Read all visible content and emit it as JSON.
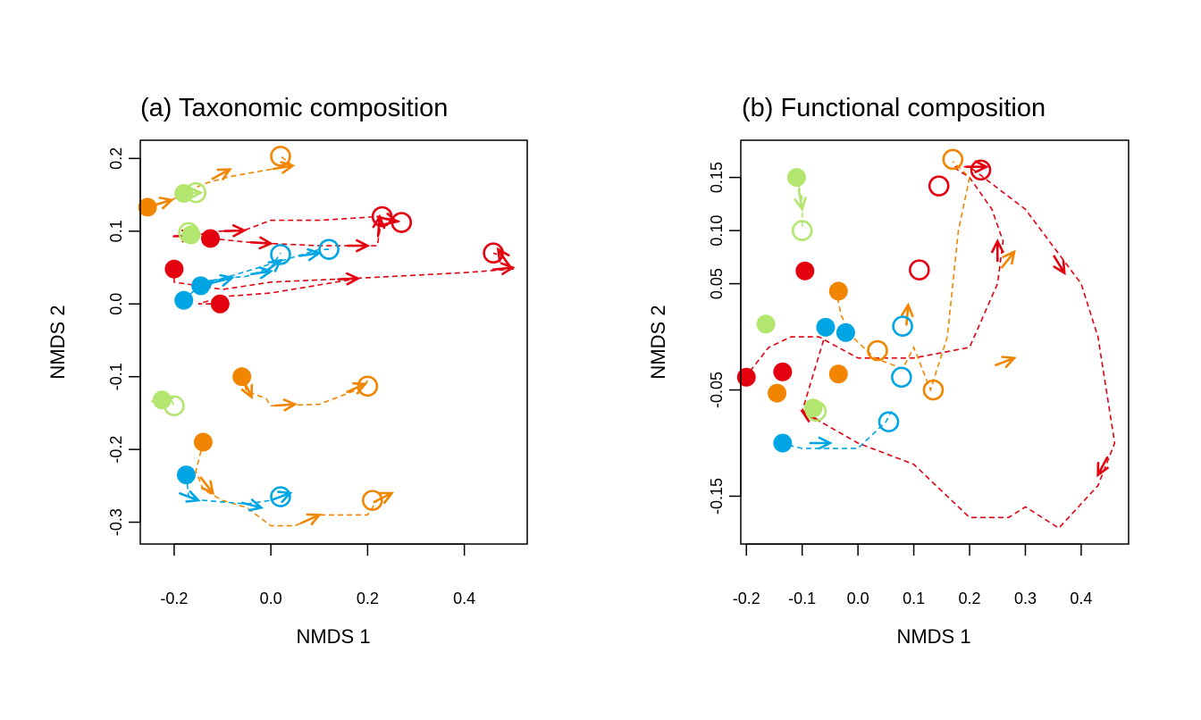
{
  "colors": {
    "red": "#e3000f",
    "orange": "#f28500",
    "blue": "#00a5e3",
    "green": "#b3e66f",
    "axis": "#000000"
  },
  "chart_data": [
    {
      "type": "scatter",
      "title": "(a) Taxonomic composition",
      "xlabel": "NMDS 1",
      "ylabel": "NMDS 2",
      "xlim": [
        -0.27,
        0.53
      ],
      "ylim": [
        -0.33,
        0.225
      ],
      "xticks": [
        -0.2,
        0.0,
        0.2,
        0.4
      ],
      "xtick_labels": [
        "-0.2",
        "0.0",
        "0.2",
        "0.4"
      ],
      "yticks": [
        -0.3,
        -0.2,
        -0.1,
        0.0,
        0.1,
        0.2
      ],
      "ytick_labels": [
        "-0.3",
        "-0.2",
        "-0.1",
        "0.0",
        "0.1",
        "0.2"
      ],
      "grid": false,
      "marker_legend": "filled circle = start, open circle = end, arrows = intermediate steps",
      "trajectories": [
        {
          "color": "orange",
          "points": [
            [
              -0.255,
              0.133
            ],
            [
              -0.205,
              0.143
            ],
            [
              -0.14,
              0.165
            ],
            [
              -0.085,
              0.175
            ],
            [
              0.0,
              0.185
            ],
            [
              0.045,
              0.19
            ],
            [
              0.02,
              0.203
            ]
          ],
          "arrows": [
            [
              -0.205,
              0.143
            ],
            [
              -0.085,
              0.185
            ],
            [
              0.045,
              0.19
            ]
          ],
          "dashed": true
        },
        {
          "color": "green",
          "points": [
            [
              -0.18,
              0.152
            ],
            [
              -0.145,
              0.153
            ],
            [
              -0.17,
              0.155
            ]
          ],
          "arrows": [
            [
              -0.145,
              0.153
            ]
          ],
          "dashed": true
        },
        {
          "color": "green",
          "points": [
            [
              -0.165,
              0.095
            ],
            [
              -0.185,
              0.092
            ],
            [
              -0.18,
              0.098
            ]
          ],
          "arrows": [],
          "dashed": true
        },
        {
          "color": "red",
          "points": [
            [
              -0.2,
              0.093
            ],
            [
              -0.16,
              0.094
            ],
            [
              -0.11,
              0.1
            ],
            [
              -0.06,
              0.1
            ],
            [
              0.0,
              0.115
            ],
            [
              0.1,
              0.115
            ],
            [
              0.22,
              0.12
            ],
            [
              0.26,
              0.115
            ],
            [
              0.27,
              0.112
            ]
          ],
          "arrows": [
            [
              -0.16,
              0.094
            ],
            [
              -0.055,
              0.101
            ],
            [
              0.26,
              0.113
            ]
          ],
          "dashed": true
        },
        {
          "color": "red",
          "points": [
            [
              -0.125,
              0.09
            ],
            [
              -0.05,
              0.085
            ],
            [
              0.0,
              0.083
            ],
            [
              0.1,
              0.08
            ],
            [
              0.22,
              0.08
            ],
            [
              0.23,
              0.12
            ]
          ],
          "arrows": [
            [
              0.0,
              0.083
            ],
            [
              0.2,
              0.08
            ],
            [
              0.225,
              0.12
            ]
          ],
          "dashed": true
        },
        {
          "color": "red",
          "points": [
            [
              -0.2,
              0.048
            ],
            [
              -0.2,
              0.03
            ],
            [
              -0.1,
              0.02
            ],
            [
              0.0,
              0.03
            ],
            [
              0.2,
              0.036
            ],
            [
              0.4,
              0.043
            ],
            [
              0.5,
              0.048
            ],
            [
              0.48,
              0.065
            ],
            [
              0.46,
              0.07
            ]
          ],
          "arrows": [
            [
              0.18,
              0.035
            ],
            [
              0.5,
              0.05
            ],
            [
              0.47,
              0.075
            ]
          ],
          "dashed": true
        },
        {
          "color": "red",
          "points": [
            [
              -0.105,
              0.0
            ],
            [
              -0.15,
              0.0
            ],
            [
              -0.1,
              0.01
            ],
            [
              0.0,
              0.015
            ],
            [
              0.18,
              0.035
            ]
          ],
          "arrows": [],
          "dashed": true
        },
        {
          "color": "blue",
          "points": [
            [
              -0.18,
              0.005
            ],
            [
              -0.14,
              0.03
            ],
            [
              -0.1,
              0.035
            ],
            [
              0.0,
              0.055
            ],
            [
              0.05,
              0.065
            ],
            [
              0.1,
              0.075
            ],
            [
              0.12,
              0.075
            ]
          ],
          "arrows": [
            [
              -0.12,
              0.032
            ],
            [
              0.0,
              0.045
            ],
            [
              0.1,
              0.07
            ]
          ],
          "dashed": true
        },
        {
          "color": "blue",
          "points": [
            [
              -0.145,
              0.025
            ],
            [
              -0.1,
              0.035
            ],
            [
              -0.05,
              0.038
            ],
            [
              0.0,
              0.05
            ],
            [
              0.02,
              0.07
            ]
          ],
          "arrows": [
            [
              -0.08,
              0.036
            ],
            [
              0.02,
              0.06
            ]
          ],
          "dashed": true
        },
        {
          "color": "green",
          "points": [
            [
              -0.225,
              -0.132
            ],
            [
              -0.205,
              -0.133
            ],
            [
              -0.2,
              -0.14
            ]
          ],
          "arrows": [
            [
              -0.205,
              -0.13
            ]
          ],
          "dashed": true
        },
        {
          "color": "orange",
          "points": [
            [
              -0.06,
              -0.1
            ],
            [
              -0.05,
              -0.12
            ],
            [
              -0.01,
              -0.13
            ],
            [
              0.0,
              -0.14
            ],
            [
              0.1,
              -0.138
            ],
            [
              0.19,
              -0.115
            ],
            [
              0.2,
              -0.105
            ]
          ],
          "arrows": [
            [
              -0.04,
              -0.128
            ],
            [
              0.05,
              -0.138
            ],
            [
              0.195,
              -0.11
            ]
          ],
          "dashed": true
        },
        {
          "color": "orange",
          "points": [
            [
              -0.14,
              -0.19
            ],
            [
              -0.155,
              -0.23
            ],
            [
              -0.14,
              -0.255
            ],
            [
              -0.1,
              -0.27
            ],
            [
              -0.05,
              -0.28
            ],
            [
              0.0,
              -0.305
            ],
            [
              0.05,
              -0.305
            ],
            [
              0.1,
              -0.29
            ],
            [
              0.2,
              -0.29
            ],
            [
              0.22,
              -0.27
            ],
            [
              0.25,
              -0.26
            ]
          ],
          "arrows": [
            [
              -0.12,
              -0.26
            ],
            [
              0.1,
              -0.29
            ],
            [
              0.25,
              -0.26
            ]
          ],
          "dashed": true
        },
        {
          "color": "blue",
          "points": [
            [
              -0.175,
              -0.235
            ],
            [
              -0.17,
              -0.265
            ],
            [
              -0.14,
              -0.27
            ],
            [
              -0.05,
              -0.275
            ],
            [
              0.0,
              -0.27
            ],
            [
              0.02,
              -0.265
            ]
          ],
          "arrows": [
            [
              -0.15,
              -0.27
            ],
            [
              -0.02,
              -0.28
            ],
            [
              0.04,
              -0.26
            ]
          ],
          "dashed": true
        }
      ],
      "start_points": [
        {
          "color": "orange",
          "x": -0.255,
          "y": 0.133
        },
        {
          "color": "green",
          "x": -0.18,
          "y": 0.152
        },
        {
          "color": "green",
          "x": -0.165,
          "y": 0.095
        },
        {
          "color": "red",
          "x": -0.125,
          "y": 0.09
        },
        {
          "color": "red",
          "x": -0.2,
          "y": 0.048
        },
        {
          "color": "blue",
          "x": -0.145,
          "y": 0.025
        },
        {
          "color": "blue",
          "x": -0.18,
          "y": 0.005
        },
        {
          "color": "red",
          "x": -0.105,
          "y": 0.0
        },
        {
          "color": "green",
          "x": -0.225,
          "y": -0.132
        },
        {
          "color": "orange",
          "x": -0.06,
          "y": -0.1
        },
        {
          "color": "orange",
          "x": -0.14,
          "y": -0.19
        },
        {
          "color": "blue",
          "x": -0.175,
          "y": -0.235
        }
      ],
      "end_points": [
        {
          "color": "orange",
          "x": 0.02,
          "y": 0.203
        },
        {
          "color": "green",
          "x": -0.155,
          "y": 0.153
        },
        {
          "color": "green",
          "x": -0.17,
          "y": 0.098
        },
        {
          "color": "red",
          "x": 0.23,
          "y": 0.12
        },
        {
          "color": "red",
          "x": 0.27,
          "y": 0.112
        },
        {
          "color": "red",
          "x": 0.46,
          "y": 0.07
        },
        {
          "color": "blue",
          "x": 0.12,
          "y": 0.075
        },
        {
          "color": "blue",
          "x": 0.02,
          "y": 0.068
        },
        {
          "color": "green",
          "x": -0.2,
          "y": -0.14
        },
        {
          "color": "orange",
          "x": 0.2,
          "y": -0.113
        },
        {
          "color": "orange",
          "x": 0.21,
          "y": -0.27
        },
        {
          "color": "blue",
          "x": 0.02,
          "y": -0.265
        }
      ]
    },
    {
      "type": "scatter",
      "title": "(b) Functional composition",
      "xlabel": "NMDS 1",
      "ylabel": "NMDS 2",
      "xlim": [
        -0.21,
        0.485
      ],
      "ylim": [
        -0.195,
        0.185
      ],
      "xticks": [
        -0.2,
        -0.1,
        0.0,
        0.1,
        0.2,
        0.3,
        0.4
      ],
      "xtick_labels": [
        "-0.2",
        "-0.1",
        "0.0",
        "0.1",
        "0.2",
        "0.3",
        "0.4"
      ],
      "yticks": [
        -0.15,
        -0.05,
        0.05,
        0.1,
        0.15
      ],
      "ytick_labels": [
        "-0.15",
        "-0.05",
        "0.05",
        "0.10",
        "0.15"
      ],
      "grid": false,
      "trajectories": [
        {
          "color": "red",
          "points": [
            [
              -0.2,
              -0.04
            ],
            [
              -0.19,
              -0.03
            ],
            [
              -0.16,
              -0.01
            ],
            [
              -0.12,
              0.0
            ],
            [
              -0.07,
              0.0
            ],
            [
              0.0,
              -0.02
            ],
            [
              0.1,
              -0.02
            ],
            [
              0.2,
              -0.01
            ],
            [
              0.25,
              0.05
            ],
            [
              0.26,
              0.09
            ],
            [
              0.24,
              0.12
            ],
            [
              0.2,
              0.15
            ],
            [
              0.17,
              0.16
            ],
            [
              0.2,
              0.16
            ],
            [
              0.3,
              0.12
            ],
            [
              0.4,
              0.05
            ],
            [
              0.43,
              0.0
            ],
            [
              0.46,
              -0.1
            ],
            [
              0.43,
              -0.14
            ],
            [
              0.36,
              -0.18
            ],
            [
              0.33,
              -0.17
            ],
            [
              0.3,
              -0.16
            ],
            [
              0.27,
              -0.17
            ],
            [
              0.2,
              -0.17
            ],
            [
              0.1,
              -0.12
            ],
            [
              0.0,
              -0.1
            ],
            [
              -0.1,
              -0.07
            ],
            [
              -0.06,
              0.0
            ]
          ],
          "arrows": [
            [
              -0.1,
              -0.07
            ],
            [
              0.25,
              0.09
            ],
            [
              0.37,
              0.06
            ],
            [
              0.43,
              -0.13
            ],
            [
              0.23,
              0.16
            ]
          ],
          "dashed": true
        },
        {
          "color": "orange",
          "points": [
            [
              -0.04,
              0.045
            ],
            [
              -0.03,
              0.02
            ],
            [
              -0.01,
              0.0
            ],
            [
              0.03,
              -0.02
            ],
            [
              0.08,
              -0.03
            ],
            [
              0.1,
              -0.01
            ],
            [
              0.13,
              -0.05
            ],
            [
              0.16,
              0.0
            ],
            [
              0.18,
              0.1
            ],
            [
              0.2,
              0.15
            ],
            [
              0.17,
              0.165
            ]
          ],
          "arrows": [
            [
              0.09,
              0.03
            ],
            [
              0.28,
              0.08
            ],
            [
              0.28,
              -0.02
            ]
          ],
          "dashed": true
        },
        {
          "color": "blue",
          "points": [
            [
              -0.14,
              -0.1
            ],
            [
              -0.1,
              -0.105
            ],
            [
              0.0,
              -0.105
            ],
            [
              0.05,
              -0.08
            ],
            [
              0.06,
              -0.07
            ]
          ],
          "arrows": [
            [
              -0.05,
              -0.1
            ]
          ],
          "dashed": true
        },
        {
          "color": "green",
          "points": [
            [
              -0.11,
              0.15
            ],
            [
              -0.1,
              0.13
            ],
            [
              -0.1,
              0.1
            ]
          ],
          "arrows": [
            [
              -0.1,
              0.12
            ]
          ],
          "dashed": true
        }
      ],
      "start_points": [
        {
          "color": "green",
          "x": -0.11,
          "y": 0.15
        },
        {
          "color": "red",
          "x": -0.095,
          "y": 0.062
        },
        {
          "color": "orange",
          "x": -0.035,
          "y": 0.043
        },
        {
          "color": "green",
          "x": -0.165,
          "y": 0.012
        },
        {
          "color": "blue",
          "x": -0.058,
          "y": 0.009
        },
        {
          "color": "blue",
          "x": -0.022,
          "y": 0.004
        },
        {
          "color": "red",
          "x": -0.2,
          "y": -0.038
        },
        {
          "color": "red",
          "x": -0.135,
          "y": -0.033
        },
        {
          "color": "orange",
          "x": -0.145,
          "y": -0.053
        },
        {
          "color": "orange",
          "x": -0.035,
          "y": -0.035
        },
        {
          "color": "green",
          "x": -0.08,
          "y": -0.067
        },
        {
          "color": "blue",
          "x": -0.135,
          "y": -0.1
        }
      ],
      "end_points": [
        {
          "color": "orange",
          "x": 0.17,
          "y": 0.167
        },
        {
          "color": "red",
          "x": 0.22,
          "y": 0.157
        },
        {
          "color": "red",
          "x": 0.145,
          "y": 0.142
        },
        {
          "color": "green",
          "x": -0.1,
          "y": 0.1
        },
        {
          "color": "red",
          "x": 0.11,
          "y": 0.063
        },
        {
          "color": "blue",
          "x": 0.08,
          "y": 0.01
        },
        {
          "color": "orange",
          "x": 0.035,
          "y": -0.013
        },
        {
          "color": "blue",
          "x": 0.078,
          "y": -0.038
        },
        {
          "color": "orange",
          "x": 0.135,
          "y": -0.05
        },
        {
          "color": "blue",
          "x": 0.055,
          "y": -0.08
        },
        {
          "color": "green",
          "x": -0.075,
          "y": -0.07
        }
      ]
    }
  ]
}
